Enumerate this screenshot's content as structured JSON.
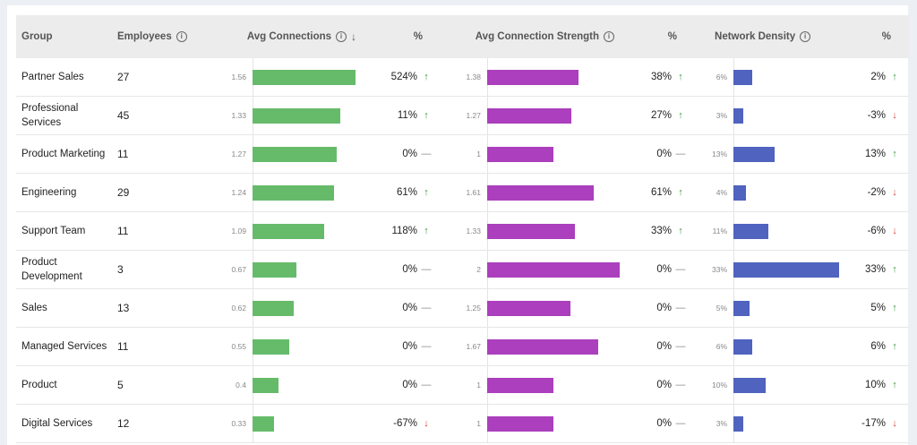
{
  "columns": {
    "group": "Group",
    "employees": "Employees",
    "avg_connections": "Avg Connections",
    "pct1": "%",
    "avg_strength": "Avg Connection Strength",
    "pct2": "%",
    "density": "Network Density",
    "pct3": "%"
  },
  "colors": {
    "connections": "#66bb6a",
    "strength": "#ab3fbd",
    "density": "#4f63bf",
    "up": "#3a9a3a",
    "down": "#d33a2c"
  },
  "rows": [
    {
      "group": "Partner Sales",
      "employees": "27",
      "conn": "1.56",
      "conn_val": 1.56,
      "conn_pct": "524%",
      "conn_dir": "up",
      "str": "1.38",
      "str_val": 1.38,
      "str_pct": "38%",
      "str_dir": "up",
      "dens": "6%",
      "dens_val": 6,
      "dens_pct": "2%",
      "dens_dir": "up"
    },
    {
      "group": "Professional Services",
      "employees": "45",
      "conn": "1.33",
      "conn_val": 1.33,
      "conn_pct": "11%",
      "conn_dir": "up",
      "str": "1.27",
      "str_val": 1.27,
      "str_pct": "27%",
      "str_dir": "up",
      "dens": "3%",
      "dens_val": 3,
      "dens_pct": "-3%",
      "dens_dir": "down"
    },
    {
      "group": "Product Marketing",
      "employees": "11",
      "conn": "1.27",
      "conn_val": 1.27,
      "conn_pct": "0%",
      "conn_dir": "flat",
      "str": "1",
      "str_val": 1,
      "str_pct": "0%",
      "str_dir": "flat",
      "dens": "13%",
      "dens_val": 13,
      "dens_pct": "13%",
      "dens_dir": "up"
    },
    {
      "group": "Engineering",
      "employees": "29",
      "conn": "1.24",
      "conn_val": 1.24,
      "conn_pct": "61%",
      "conn_dir": "up",
      "str": "1.61",
      "str_val": 1.61,
      "str_pct": "61%",
      "str_dir": "up",
      "dens": "4%",
      "dens_val": 4,
      "dens_pct": "-2%",
      "dens_dir": "down"
    },
    {
      "group": "Support Team",
      "employees": "11",
      "conn": "1.09",
      "conn_val": 1.09,
      "conn_pct": "118%",
      "conn_dir": "up",
      "str": "1.33",
      "str_val": 1.33,
      "str_pct": "33%",
      "str_dir": "up",
      "dens": "11%",
      "dens_val": 11,
      "dens_pct": "-6%",
      "dens_dir": "down"
    },
    {
      "group": "Product Development",
      "employees": "3",
      "conn": "0.67",
      "conn_val": 0.67,
      "conn_pct": "0%",
      "conn_dir": "flat",
      "str": "2",
      "str_val": 2,
      "str_pct": "0%",
      "str_dir": "flat",
      "dens": "33%",
      "dens_val": 33,
      "dens_pct": "33%",
      "dens_dir": "up"
    },
    {
      "group": "Sales",
      "employees": "13",
      "conn": "0.62",
      "conn_val": 0.62,
      "conn_pct": "0%",
      "conn_dir": "flat",
      "str": "1.25",
      "str_val": 1.25,
      "str_pct": "0%",
      "str_dir": "flat",
      "dens": "5%",
      "dens_val": 5,
      "dens_pct": "5%",
      "dens_dir": "up"
    },
    {
      "group": "Managed Services",
      "employees": "11",
      "conn": "0.55",
      "conn_val": 0.55,
      "conn_pct": "0%",
      "conn_dir": "flat",
      "str": "1.67",
      "str_val": 1.67,
      "str_pct": "0%",
      "str_dir": "flat",
      "dens": "6%",
      "dens_val": 6,
      "dens_pct": "6%",
      "dens_dir": "up"
    },
    {
      "group": "Product",
      "employees": "5",
      "conn": "0.4",
      "conn_val": 0.4,
      "conn_pct": "0%",
      "conn_dir": "flat",
      "str": "1",
      "str_val": 1,
      "str_pct": "0%",
      "str_dir": "flat",
      "dens": "10%",
      "dens_val": 10,
      "dens_pct": "10%",
      "dens_dir": "up"
    },
    {
      "group": "Digital Services",
      "employees": "12",
      "conn": "0.33",
      "conn_val": 0.33,
      "conn_pct": "-67%",
      "conn_dir": "down",
      "str": "1",
      "str_val": 1,
      "str_pct": "0%",
      "str_dir": "flat",
      "dens": "3%",
      "dens_val": 3,
      "dens_pct": "-17%",
      "dens_dir": "down"
    }
  ]
}
